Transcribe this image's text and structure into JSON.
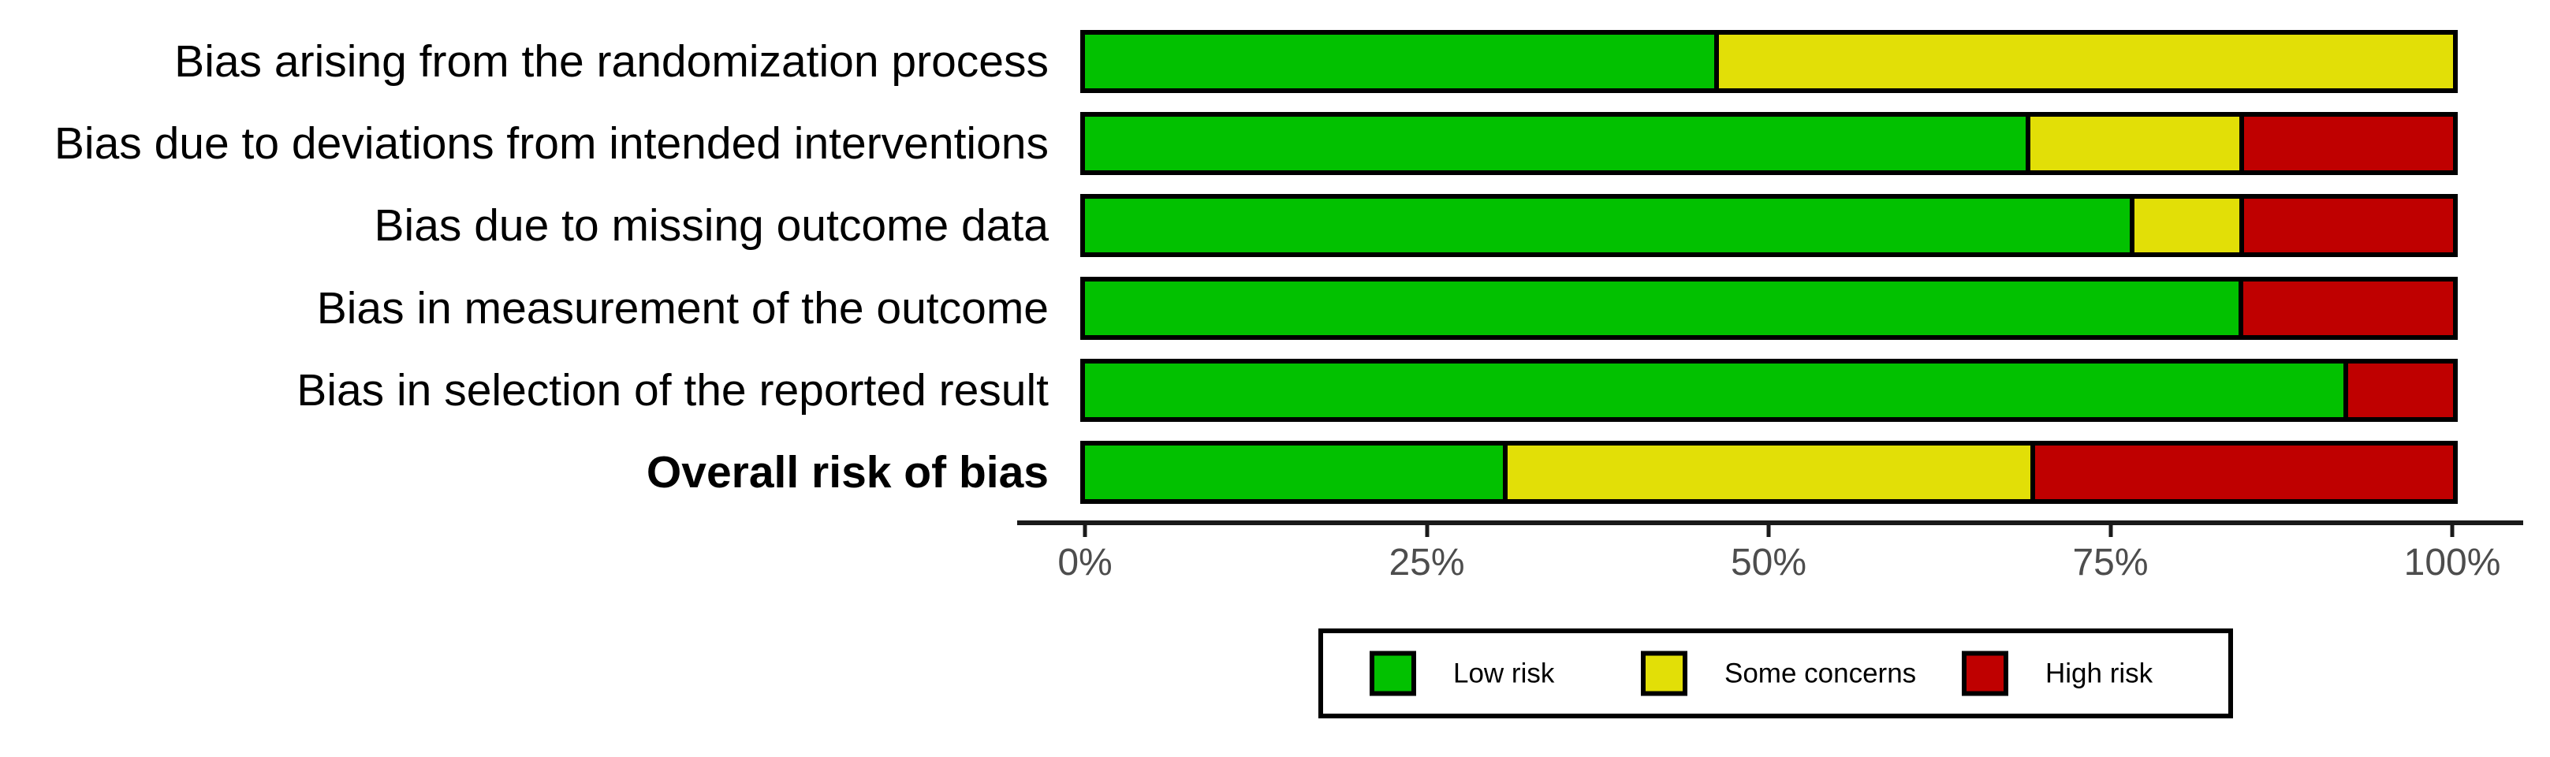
{
  "chart_data": {
    "type": "bar",
    "subtype": "horizontal_stacked_percent",
    "title": "",
    "xlabel": "",
    "ylabel": "",
    "categories": [
      "Bias arising from the randomization process",
      "Bias due to deviations from intended interventions",
      "Bias due to missing outcome data",
      "Bias in measurement of the outcome",
      "Bias in selection of the reported result",
      "Overall risk of bias"
    ],
    "bold_category": "Overall risk of bias",
    "series": [
      {
        "name": "Low risk",
        "color": "#02C100",
        "values": [
          46.15,
          69.23,
          76.92,
          84.62,
          92.31,
          30.77
        ]
      },
      {
        "name": "Some concerns",
        "color": "#E2DF07",
        "values": [
          53.85,
          15.38,
          7.69,
          0,
          0,
          38.46
        ]
      },
      {
        "name": "High risk",
        "color": "#BF0000",
        "values": [
          0,
          15.38,
          15.38,
          15.38,
          7.69,
          30.77
        ]
      }
    ],
    "x_range": [
      0,
      100
    ],
    "x_ticks": [
      "0%",
      "25%",
      "50%",
      "75%",
      "100%"
    ],
    "grid": false,
    "legend": {
      "position": "bottom",
      "entries": [
        {
          "label": "Low risk",
          "color": "#02C100"
        },
        {
          "label": "Some concerns",
          "color": "#E2DF07"
        },
        {
          "label": "High risk",
          "color": "#BF0000"
        }
      ]
    }
  },
  "styles": {
    "background": "#ffffff",
    "bar_border_color": "#000000",
    "axis_line_color": "#1a1a1a",
    "tick_label_color": "#4d4d4d",
    "category_label_color": "#000000"
  }
}
